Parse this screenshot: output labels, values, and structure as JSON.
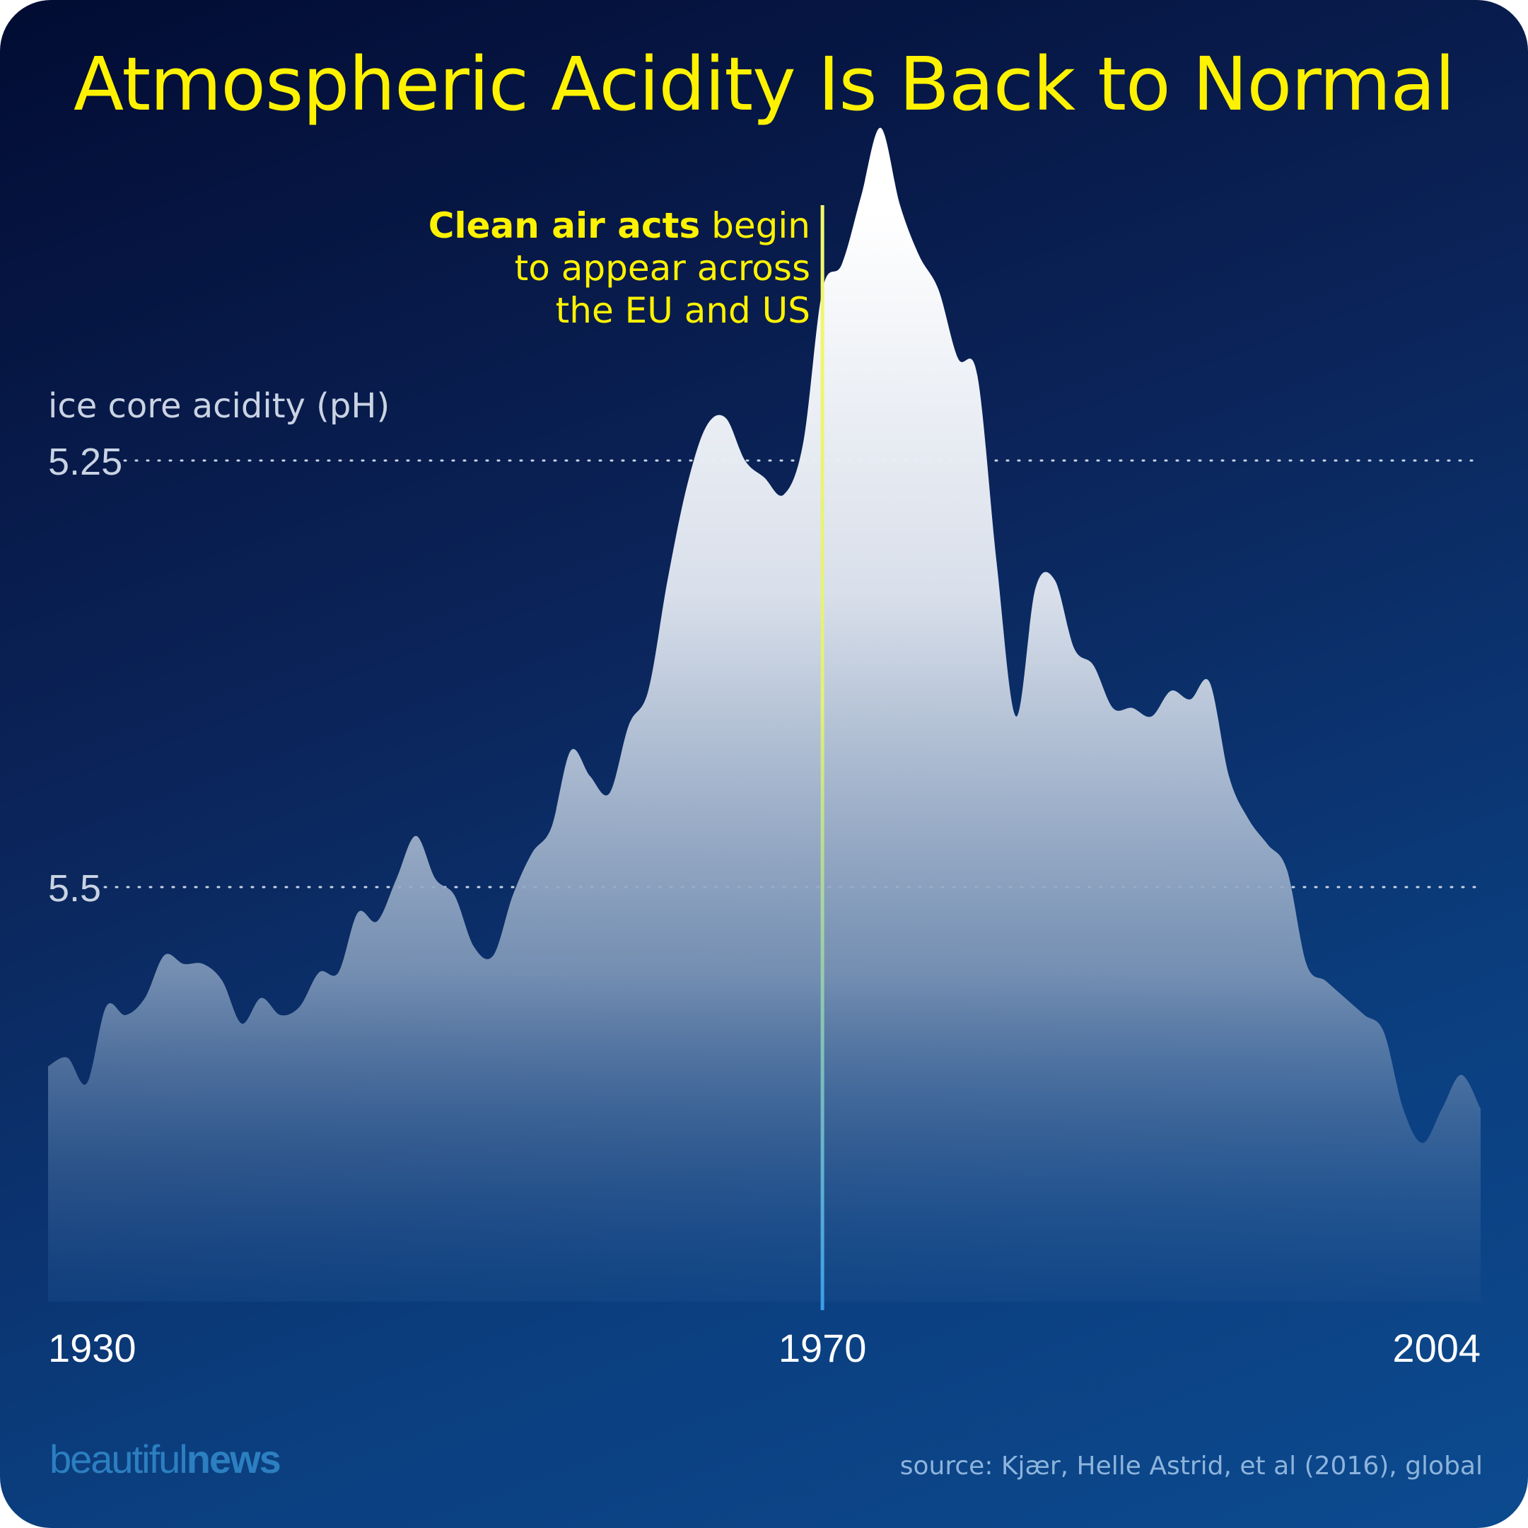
{
  "title": "Atmospheric Acidity Is Back to Normal",
  "annotation": {
    "bold": "Clean air acts",
    "rest": "begin",
    "line2": "to appear across",
    "line3": "the EU and US",
    "year": 1970
  },
  "source": "source: Kjær, Helle Astrid, et al (2016), global",
  "logo": {
    "light": "beautiful",
    "bold": "news"
  },
  "colors": {
    "title": "#fff200",
    "area_top": "#ffffff",
    "area_bottom": "#1b4f8e",
    "annotation_line_top": "#e9f56a",
    "annotation_line_bottom": "#3a9de8",
    "axis_text": "#ffffff",
    "gridline": "#c8d3e6"
  },
  "chart_data": {
    "type": "area",
    "title": "Atmospheric Acidity Is Back to Normal",
    "ylabel": "ice core acidity (pH)",
    "y_inverted": true,
    "y_ticks": [
      5.25,
      5.5
    ],
    "y_tick_labels": [
      "5.25",
      "5.5"
    ],
    "ylim": [
      5.66,
      5.02
    ],
    "x_ticks": [
      1930,
      1970,
      2004
    ],
    "x_tick_labels": [
      "1930",
      "1970",
      "2004"
    ],
    "xlim": [
      1930,
      2004
    ],
    "grid": "dotted horizontal at y ticks",
    "series": [
      {
        "name": "ice core acidity (pH)",
        "x": [
          1930,
          1931,
          1932,
          1933,
          1934,
          1935,
          1936,
          1937,
          1938,
          1939,
          1940,
          1941,
          1942,
          1943,
          1944,
          1945,
          1946,
          1947,
          1948,
          1949,
          1950,
          1951,
          1952,
          1953,
          1954,
          1955,
          1956,
          1957,
          1958,
          1959,
          1960,
          1961,
          1962,
          1963,
          1964,
          1965,
          1966,
          1967,
          1968,
          1969,
          1970,
          1971,
          1972,
          1973,
          1974,
          1975,
          1976,
          1977,
          1978,
          1979,
          1980,
          1981,
          1982,
          1983,
          1984,
          1985,
          1986,
          1987,
          1988,
          1989,
          1990,
          1991,
          1992,
          1993,
          1994,
          1995,
          1996,
          1997,
          1998,
          1999,
          2000,
          2001,
          2002,
          2003,
          2004
        ],
        "values": [
          5.605,
          5.6,
          5.615,
          5.57,
          5.575,
          5.565,
          5.54,
          5.545,
          5.545,
          5.555,
          5.58,
          5.565,
          5.575,
          5.57,
          5.55,
          5.55,
          5.515,
          5.52,
          5.495,
          5.47,
          5.495,
          5.505,
          5.535,
          5.54,
          5.505,
          5.48,
          5.465,
          5.42,
          5.435,
          5.445,
          5.405,
          5.385,
          5.32,
          5.265,
          5.23,
          5.225,
          5.25,
          5.26,
          5.27,
          5.24,
          5.15,
          5.135,
          5.095,
          5.055,
          5.1,
          5.13,
          5.15,
          5.19,
          5.2,
          5.31,
          5.4,
          5.325,
          5.32,
          5.36,
          5.37,
          5.395,
          5.395,
          5.4,
          5.385,
          5.39,
          5.38,
          5.435,
          5.46,
          5.475,
          5.49,
          5.545,
          5.555,
          5.565,
          5.575,
          5.585,
          5.63,
          5.65,
          5.63,
          5.61,
          5.63
        ]
      }
    ]
  }
}
